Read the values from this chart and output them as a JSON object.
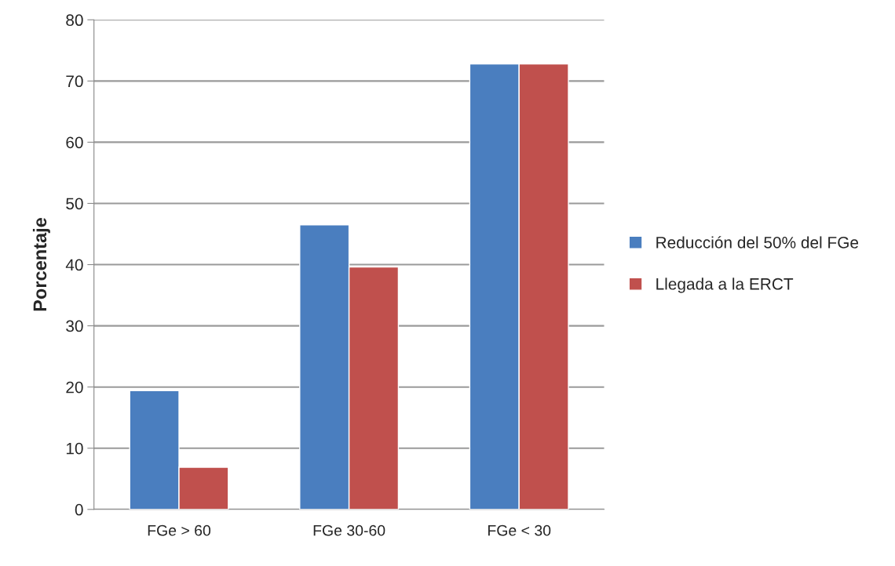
{
  "chart_data": {
    "type": "bar",
    "ylabel": "Porcentaje",
    "categories": [
      "FGe > 60",
      "FGe 30-60",
      "FGe < 30"
    ],
    "series": [
      {
        "name": "Reducción del 50% del FGe",
        "color": "#4a7ebf",
        "values": [
          19.4,
          46.5,
          72.8
        ]
      },
      {
        "name": "Llegada a la ERCT",
        "color": "#c0504d",
        "values": [
          6.9,
          39.6,
          72.8
        ]
      }
    ],
    "ylim": [
      0,
      80
    ],
    "yticks": [
      0,
      10,
      20,
      30,
      40,
      50,
      60,
      70,
      80
    ],
    "grid": "y",
    "legend": "right"
  }
}
